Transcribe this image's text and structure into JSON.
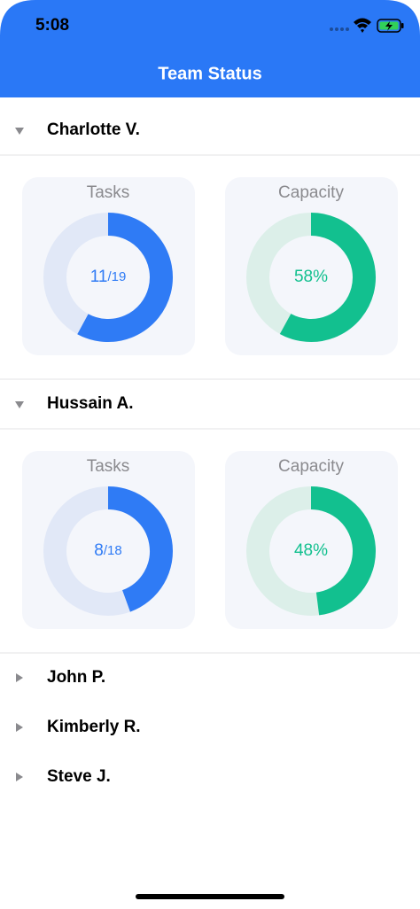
{
  "status_bar": {
    "time": "5:08"
  },
  "header": {
    "title": "Team Status"
  },
  "members": [
    {
      "name": "Charlotte V.",
      "expanded": true,
      "tasks": {
        "label": "Tasks",
        "done": 11,
        "total": {
          "value": 19,
          "label": "/19"
        },
        "color": "#2f7bf5",
        "track_color": "#e1e8f7"
      },
      "capacity": {
        "label": "Capacity",
        "value": 58,
        "value_label": "58%",
        "max": 100,
        "color": "#12c08f",
        "track_color": "#dcefe9"
      }
    },
    {
      "name": "Hussain A.",
      "expanded": true,
      "tasks": {
        "label": "Tasks",
        "done": 8,
        "total": {
          "value": 18,
          "label": "/18"
        },
        "color": "#2f7bf5",
        "track_color": "#e1e8f7"
      },
      "capacity": {
        "label": "Capacity",
        "value": 48,
        "value_label": "48%",
        "max": 100,
        "color": "#12c08f",
        "track_color": "#dcefe9"
      }
    },
    {
      "name": "John P.",
      "expanded": false
    },
    {
      "name": "Kimberly R.",
      "expanded": false
    },
    {
      "name": "Steve J.",
      "expanded": false
    }
  ]
}
